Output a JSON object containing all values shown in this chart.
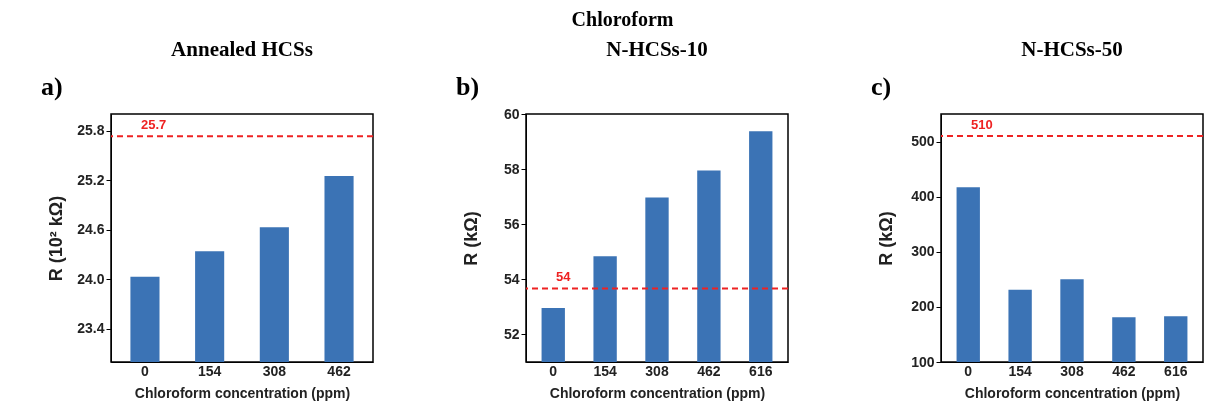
{
  "chart_data": [
    {
      "type": "bar",
      "title": "Annealed HCSs",
      "xlabel": "Chloroform concentration (ppm)",
      "ylabel": "R (10² kΩ)",
      "annotations": [
        "a)",
        "Chloroform"
      ],
      "categories": [
        "0",
        "154",
        "308",
        "462"
      ],
      "values": [
        24.03,
        24.34,
        24.63,
        25.25
      ],
      "color": "#3b73b5",
      "ylim": [
        23.0,
        26.0
      ],
      "yticks": [
        {
          "value": 23.4,
          "label": "23.4"
        },
        {
          "value": 24,
          "label": "24.0"
        },
        {
          "value": 24.6,
          "label": "24.6"
        },
        {
          "value": 25.2,
          "label": "25.2"
        },
        {
          "value": 25.8,
          "label": "25.8"
        }
      ],
      "ref_lines": [
        {
          "axis": "y",
          "value": 25.73,
          "label": "25.7",
          "color": "#ee2222",
          "line_style": "dashed"
        }
      ]
    },
    {
      "type": "bar",
      "title": "N-HCSs-10",
      "xlabel": "Chloroform concentration (ppm)",
      "ylabel": "R (kΩ)",
      "annotations": [
        "b)"
      ],
      "categories": [
        "0",
        "154",
        "308",
        "462",
        "616"
      ],
      "values": [
        52.96,
        54.84,
        56.97,
        57.95,
        59.37
      ],
      "color": "#3b73b5",
      "ylim": [
        51,
        60
      ],
      "yticks": [
        52,
        54,
        56,
        58,
        60
      ],
      "ref_lines": [
        {
          "axis": "y",
          "value": 53.67,
          "label": "54",
          "color": "#ee2222",
          "line_style": "dashed"
        }
      ]
    },
    {
      "type": "bar",
      "title": "N-HCSs-50",
      "xlabel": "Chloroform concentration (ppm)",
      "ylabel": "R (kΩ)",
      "annotations": [
        "c)"
      ],
      "categories": [
        "0",
        "154",
        "308",
        "462",
        "616"
      ],
      "values": [
        417,
        231,
        250,
        181,
        183
      ],
      "color": "#3b73b5",
      "ylim": [
        100,
        550
      ],
      "yticks": [
        100,
        200,
        300,
        400,
        500
      ],
      "ref_lines": [
        {
          "axis": "y",
          "value": 510,
          "label": "510",
          "color": "#ee2222",
          "line_style": "dashed"
        }
      ]
    }
  ]
}
